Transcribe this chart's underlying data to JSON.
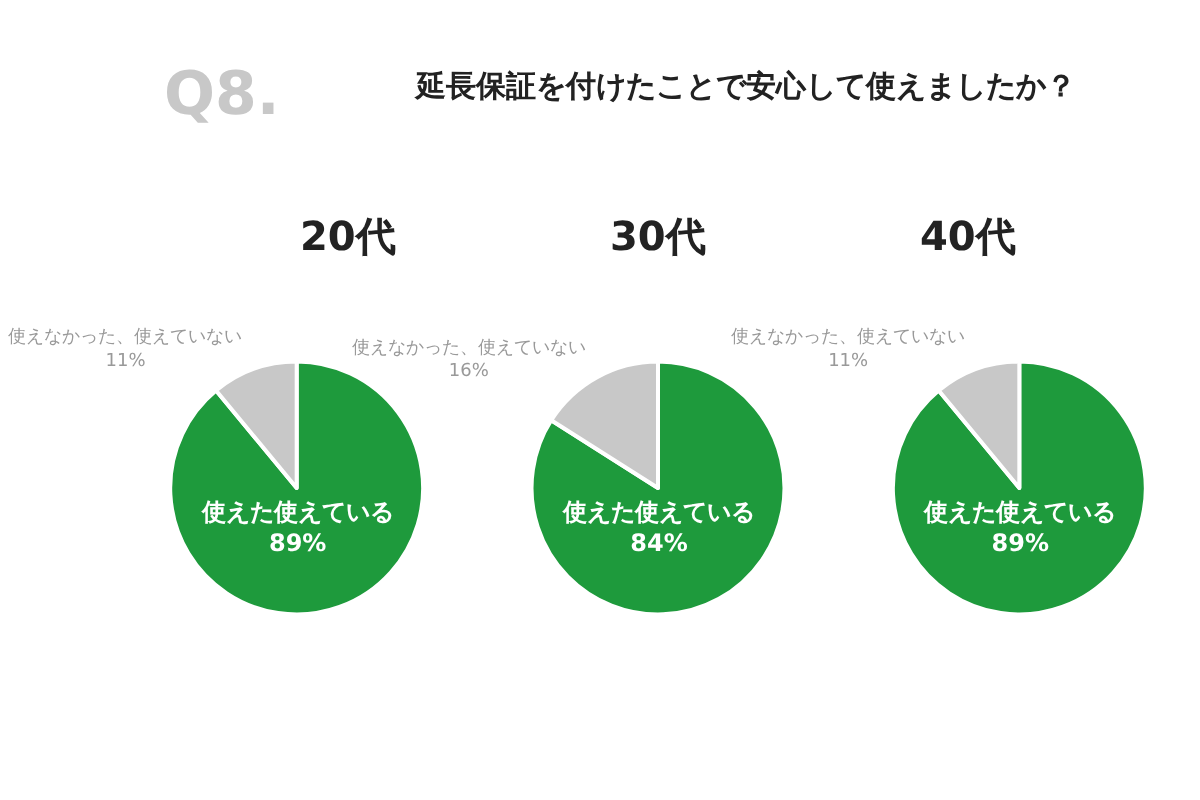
{
  "chart_data": [
    {
      "type": "pie",
      "title": "20代",
      "categories": [
        "使えた使えている",
        "使えなかった、使えていない"
      ],
      "values": [
        89,
        11
      ],
      "colors": [
        "#1e9a3c",
        "#c8c8c8"
      ],
      "value_labels": [
        "89%",
        "11%"
      ],
      "annotations": [
        "Q8.",
        "延長保証を付けたことで安心して使えましたか？"
      ]
    },
    {
      "type": "pie",
      "title": "30代",
      "categories": [
        "使えた使えている",
        "使えなかった、使えていない"
      ],
      "values": [
        84,
        16
      ],
      "colors": [
        "#1e9a3c",
        "#c8c8c8"
      ],
      "value_labels": [
        "84%",
        "16%"
      ]
    },
    {
      "type": "pie",
      "title": "40代",
      "categories": [
        "使えた使えている",
        "使えなかった、使えていない"
      ],
      "values": [
        89,
        11
      ],
      "colors": [
        "#1e9a3c",
        "#c8c8c8"
      ],
      "value_labels": [
        "89%",
        "11%"
      ]
    }
  ]
}
